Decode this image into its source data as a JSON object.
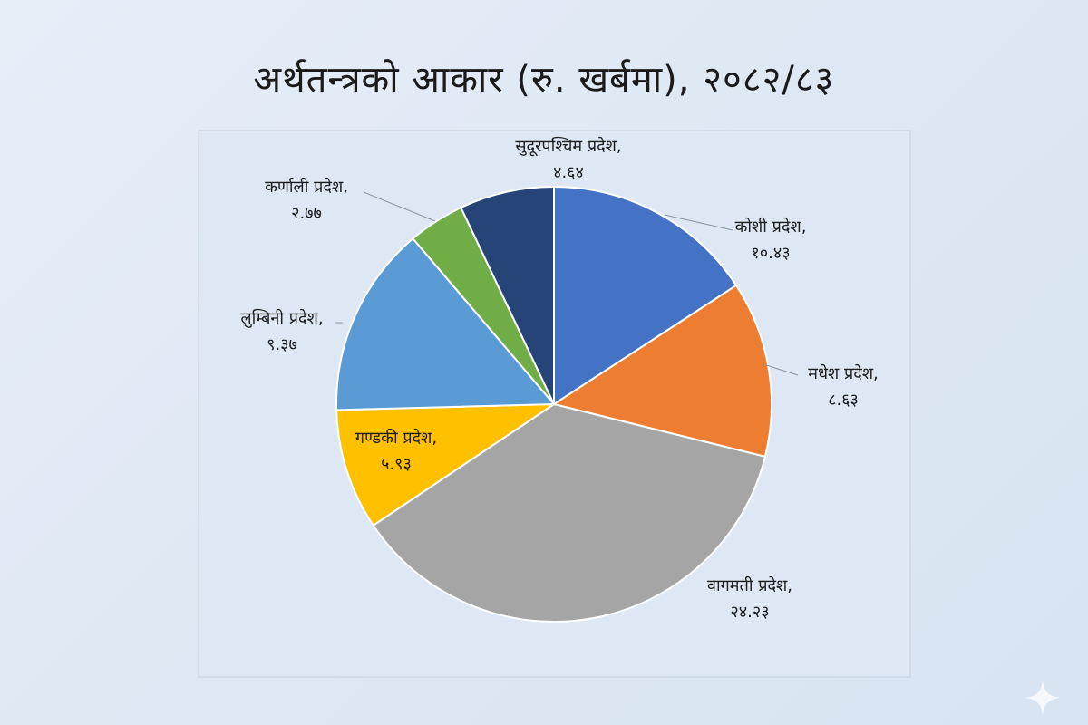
{
  "chart_data": {
    "type": "pie",
    "title": "अर्थतन्त्रको आकार (रु. खर्बमा), २०८२/८३",
    "slices": [
      {
        "label": "कोशी प्रदेश",
        "value_text": "१०.४३",
        "value": 10.43,
        "color": "#4472c4"
      },
      {
        "label": "मधेश प्रदेश",
        "value_text": "८.६३",
        "value": 8.63,
        "color": "#ed7d31"
      },
      {
        "label": "वागमती प्रदेश",
        "value_text": "२४.२३",
        "value": 24.23,
        "color": "#a5a5a5"
      },
      {
        "label": "गण्डकी प्रदेश",
        "value_text": "५.९३",
        "value": 5.93,
        "color": "#ffc000"
      },
      {
        "label": "लुम्बिनी प्रदेश",
        "value_text": "९.३७",
        "value": 9.37,
        "color": "#5b9bd5"
      },
      {
        "label": "कर्णाली प्रदेश",
        "value_text": "२.७७",
        "value": 2.77,
        "color": "#70ad47"
      },
      {
        "label": "सुदूरपश्चिम प्रदेश",
        "value_text": "४.६४",
        "value": 4.64,
        "color": "#264478"
      }
    ]
  }
}
